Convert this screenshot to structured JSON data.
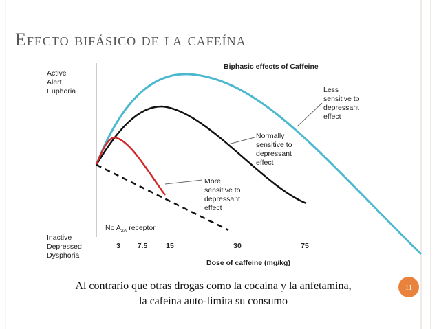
{
  "slide": {
    "title": "Efecto bifásico de la cafeína",
    "page_number": "11",
    "caption": [
      "Al contrario que otras drogas como la cocaína y la anfetamina,",
      "la cafeína auto-limita su consumo"
    ]
  },
  "figure": {
    "title": "Biphasic effects of Caffeine",
    "y_top_label": [
      "Active",
      "Alert",
      "Euphoria"
    ],
    "y_bottom_label": [
      "Inactive",
      "Depressed",
      "Dysphoria"
    ],
    "x_tick_labels": [
      "3",
      "7.5",
      "15",
      "30",
      "75"
    ],
    "x_label": "Dose of caffeine (mg/kg)",
    "annotations": {
      "less": [
        "Less",
        "sensitive to",
        "depressant",
        "effect"
      ],
      "normal": [
        "Normally",
        "sensitive to",
        "depressant",
        "effect"
      ],
      "more": [
        "More",
        "sensitive to",
        "depressant",
        "effect"
      ],
      "no_receptor": [
        "No A",
        "2A",
        " receptor"
      ]
    }
  }
}
